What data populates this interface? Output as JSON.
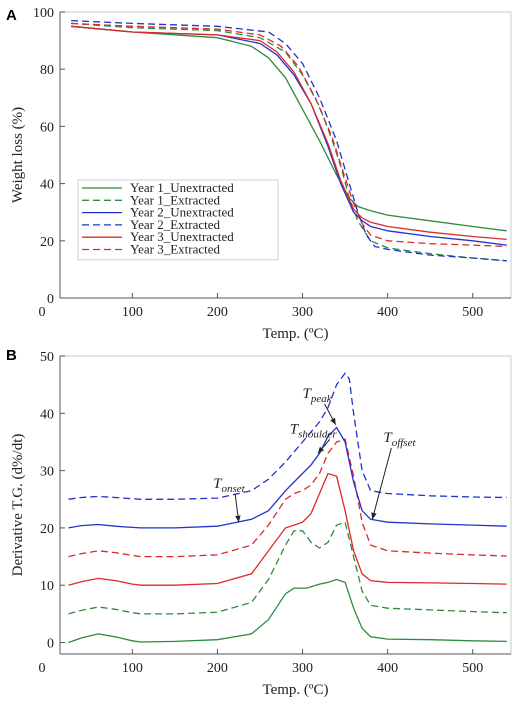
{
  "colors": {
    "year1": "#2e8b3c",
    "year2": "#2233cc",
    "year3": "#dd2a2a"
  },
  "chart_data": [
    {
      "panel": "A",
      "type": "line",
      "xlabel": "Temp. (ºC)",
      "ylabel": "Weight loss (%)",
      "xlim": [
        15,
        545
      ],
      "ylim": [
        0,
        100
      ],
      "xticks": [
        0,
        100,
        200,
        300,
        400,
        500
      ],
      "yticks": [
        0,
        20,
        40,
        60,
        80,
        100
      ],
      "legend_position": "lower-left",
      "series": [
        {
          "name": "Year 1_Unextracted",
          "color": "year1",
          "dash": "solid",
          "x": [
            28,
            100,
            200,
            240,
            260,
            280,
            300,
            320,
            340,
            355,
            365,
            380,
            400,
            450,
            500,
            540
          ],
          "y": [
            95,
            93,
            91,
            88,
            84,
            77,
            66,
            55,
            43,
            35,
            32,
            30.5,
            29,
            27,
            25,
            23.5
          ]
        },
        {
          "name": "Year 1_Extracted",
          "color": "year1",
          "dash": "dashed",
          "x": [
            28,
            100,
            200,
            250,
            280,
            300,
            320,
            335,
            345,
            355,
            365,
            380,
            400,
            450,
            500,
            540
          ],
          "y": [
            96,
            94.5,
            93.5,
            91,
            86,
            78,
            67,
            55,
            46,
            35,
            27,
            20,
            17.5,
            15.5,
            14,
            13
          ]
        },
        {
          "name": "Year 2_Unextracted",
          "color": "year2",
          "dash": "solid",
          "x": [
            28,
            100,
            200,
            250,
            270,
            290,
            310,
            330,
            345,
            360,
            370,
            380,
            400,
            450,
            500,
            540
          ],
          "y": [
            95,
            93,
            92,
            89,
            85,
            78,
            68,
            53,
            40,
            30,
            27,
            25,
            23.5,
            21.5,
            20,
            18.5
          ]
        },
        {
          "name": "Year 2_Extracted",
          "color": "year2",
          "dash": "dashed",
          "x": [
            28,
            100,
            200,
            260,
            280,
            300,
            320,
            340,
            355,
            365,
            375,
            385,
            400,
            450,
            500,
            540
          ],
          "y": [
            97,
            96,
            95,
            93,
            89,
            82,
            70,
            55,
            40,
            30,
            22,
            18,
            17,
            15,
            14,
            13
          ]
        },
        {
          "name": "Year 3_Unextracted",
          "color": "year3",
          "dash": "solid",
          "x": [
            28,
            100,
            200,
            250,
            270,
            290,
            310,
            330,
            345,
            360,
            370,
            380,
            400,
            450,
            500,
            540
          ],
          "y": [
            95,
            93,
            92,
            90,
            86,
            79,
            68,
            54,
            41,
            31,
            28,
            26.5,
            25,
            23,
            21.5,
            20.5
          ]
        },
        {
          "name": "Year 3_Extracted",
          "color": "year3",
          "dash": "dashed",
          "x": [
            28,
            100,
            200,
            250,
            275,
            295,
            315,
            335,
            350,
            360,
            370,
            380,
            400,
            450,
            500,
            540
          ],
          "y": [
            96,
            95,
            94,
            92,
            88,
            81,
            70,
            56,
            42,
            33,
            26,
            22,
            20,
            19,
            18.5,
            18
          ]
        }
      ]
    },
    {
      "panel": "B",
      "type": "line",
      "xlabel": "Temp. (ºC)",
      "ylabel": "Derivative T.G. (d%/dt)",
      "xlim": [
        15,
        545
      ],
      "ylim": [
        -2,
        50
      ],
      "xticks": [
        0,
        100,
        200,
        300,
        400,
        500
      ],
      "yticks": [
        0,
        10,
        20,
        30,
        40,
        50
      ],
      "annotations": [
        {
          "main": "T",
          "sub": "onset",
          "x": 195,
          "y": 27,
          "target_x": 225,
          "target_y": 21
        },
        {
          "main": "T",
          "sub": "shoulder",
          "x": 285,
          "y": 36.5,
          "target_x": 318,
          "target_y": 33
        },
        {
          "main": "T",
          "sub": "peak",
          "x": 300,
          "y": 42.7,
          "target_x": 339,
          "target_y": 38
        },
        {
          "main": "T",
          "sub": "offset",
          "x": 395,
          "y": 35,
          "target_x": 382,
          "target_y": 21.5
        }
      ],
      "series": [
        {
          "name": "Year 1_Unextracted",
          "color": "year1",
          "dash": "solid",
          "x": [
            25,
            40,
            60,
            80,
            100,
            110,
            150,
            200,
            240,
            260,
            280,
            290,
            305,
            320,
            330,
            340,
            350,
            360,
            370,
            380,
            400,
            450,
            500,
            540
          ],
          "y": [
            0,
            0.8,
            1.5,
            1.0,
            0.3,
            0.1,
            0.2,
            0.5,
            1.5,
            4,
            8.5,
            9.5,
            9.5,
            10.2,
            10.5,
            11,
            10.5,
            6,
            2.5,
            1,
            0.6,
            0.5,
            0.3,
            0.2
          ]
        },
        {
          "name": "Year 1_Extracted",
          "color": "year1",
          "dash": "dashed",
          "x": [
            25,
            40,
            60,
            80,
            100,
            110,
            150,
            200,
            240,
            260,
            280,
            290,
            300,
            310,
            320,
            330,
            340,
            350,
            360,
            370,
            380,
            400,
            450,
            500,
            540
          ],
          "y": [
            5,
            5.6,
            6.2,
            5.8,
            5.2,
            5.0,
            5.0,
            5.3,
            7,
            11,
            17,
            19.5,
            19.5,
            17.5,
            16.5,
            17.5,
            20.5,
            21,
            15,
            9,
            6.5,
            6,
            5.7,
            5.4,
            5.2
          ]
        },
        {
          "name": "Year 3_Unextracted",
          "color": "year3",
          "dash": "solid",
          "x": [
            25,
            40,
            60,
            80,
            100,
            110,
            150,
            200,
            240,
            260,
            280,
            290,
            300,
            310,
            320,
            330,
            340,
            350,
            360,
            370,
            380,
            400,
            450,
            500,
            540
          ],
          "y": [
            10,
            10.6,
            11.2,
            10.8,
            10.2,
            10.0,
            10.0,
            10.3,
            12,
            16,
            20,
            20.5,
            21,
            22.5,
            26,
            29.5,
            29,
            23,
            16,
            12,
            10.8,
            10.5,
            10.4,
            10.3,
            10.2
          ]
        },
        {
          "name": "Year 3_Extracted",
          "color": "year3",
          "dash": "dashed",
          "x": [
            25,
            40,
            60,
            80,
            100,
            110,
            150,
            200,
            240,
            260,
            280,
            290,
            300,
            310,
            320,
            330,
            340,
            350,
            360,
            370,
            380,
            400,
            450,
            500,
            540
          ],
          "y": [
            15,
            15.5,
            16,
            15.7,
            15.2,
            15.0,
            15.0,
            15.3,
            17,
            20.5,
            25,
            26,
            26.5,
            27.5,
            29.5,
            33,
            35,
            35.5,
            29,
            21,
            17,
            16,
            15.6,
            15.3,
            15.1
          ]
        },
        {
          "name": "Year 2_Unextracted",
          "color": "year2",
          "dash": "solid",
          "x": [
            25,
            40,
            60,
            80,
            100,
            110,
            150,
            200,
            240,
            260,
            280,
            300,
            310,
            320,
            330,
            340,
            350,
            360,
            370,
            380,
            400,
            450,
            500,
            540
          ],
          "y": [
            20,
            20.4,
            20.6,
            20.3,
            20.1,
            20.0,
            20.0,
            20.3,
            21.5,
            23,
            26.5,
            29.5,
            31,
            33,
            36,
            37.5,
            35,
            28,
            23,
            21.5,
            21,
            20.7,
            20.5,
            20.3
          ]
        },
        {
          "name": "Year 2_Extracted",
          "color": "year2",
          "dash": "dashed",
          "x": [
            25,
            40,
            60,
            80,
            100,
            110,
            150,
            200,
            240,
            260,
            280,
            300,
            320,
            330,
            340,
            350,
            355,
            360,
            370,
            380,
            400,
            450,
            500,
            540
          ],
          "y": [
            25,
            25.3,
            25.5,
            25.3,
            25.1,
            25.0,
            25.0,
            25.2,
            26.5,
            28.5,
            31.5,
            35,
            38.5,
            41,
            45,
            47,
            46,
            40,
            30,
            26.5,
            26,
            25.6,
            25.4,
            25.3
          ]
        }
      ]
    }
  ]
}
